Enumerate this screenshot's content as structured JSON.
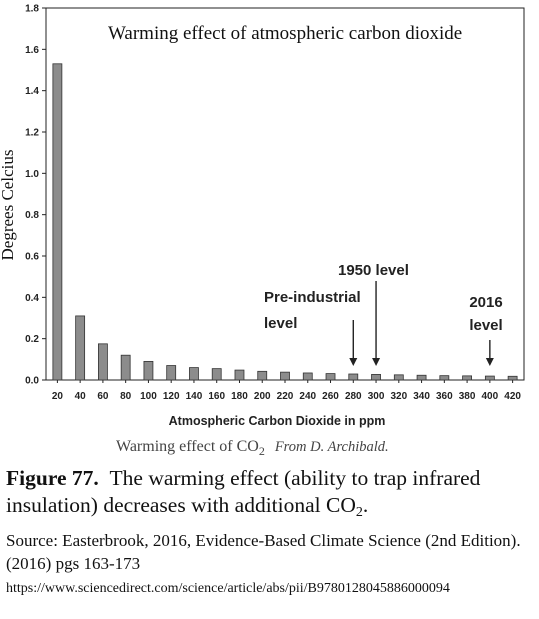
{
  "chart_data": {
    "type": "bar",
    "title": "Warming effect of atmospheric carbon dioxide",
    "xlabel": "Atmospheric Carbon Dioxide in ppm",
    "ylabel": "Degrees Celcius",
    "ylim": [
      0,
      1.8
    ],
    "yticks": [
      "0.0",
      "0.2",
      "0.4",
      "0.6",
      "0.8",
      "1.0",
      "1.2",
      "1.4",
      "1.6",
      "1.8"
    ],
    "categories": [
      "20",
      "40",
      "60",
      "80",
      "100",
      "120",
      "140",
      "160",
      "180",
      "200",
      "220",
      "240",
      "260",
      "280",
      "300",
      "320",
      "340",
      "360",
      "380",
      "400",
      "420"
    ],
    "values": [
      1.53,
      0.31,
      0.175,
      0.12,
      0.09,
      0.07,
      0.06,
      0.055,
      0.048,
      0.042,
      0.038,
      0.034,
      0.031,
      0.029,
      0.027,
      0.025,
      0.023,
      0.021,
      0.02,
      0.019,
      0.018
    ],
    "bar_color": "#8c8c8c",
    "grid": false,
    "annotations": [
      {
        "lines": [
          "Pre-industrial",
          "level"
        ],
        "at": "280"
      },
      {
        "lines": [
          "1950 level"
        ],
        "at": "300"
      },
      {
        "lines": [
          "2016",
          "level"
        ],
        "at": "400"
      }
    ],
    "subcaption": {
      "main": "Warming effect of CO",
      "subscript": "2",
      "source": "From D. Archibald."
    }
  },
  "caption": {
    "figure_label": "Figure 77.",
    "figure_text_1": "The warming effect (ability to trap infrared insulation) decreases with additional CO",
    "figure_sub": "2",
    "figure_text_2": ".",
    "source": "Source: Easterbrook, 2016, Evidence-Based Climate Science (2nd Edition). (2016) pgs 163-173",
    "url": "https://www.sciencedirect.com/science/article/abs/pii/B9780128045886000094"
  }
}
